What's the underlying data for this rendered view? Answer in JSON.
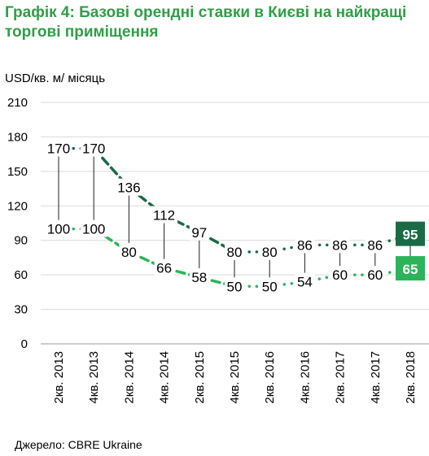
{
  "title": "Графік 4: Базові орендні ставки в Києві на найкращі торгові приміщення",
  "source": "Джерело:  CBRE Ukraine",
  "chart_data": {
    "type": "line",
    "ylabel": "USD/кв. м/ місяць",
    "ylim": [
      0,
      210
    ],
    "yticks": [
      0,
      30,
      60,
      90,
      120,
      150,
      180,
      210
    ],
    "grid": true,
    "categories": [
      "2кв. 2013",
      "4кв. 2013",
      "2кв. 2014",
      "4кв. 2014",
      "2кв. 2015",
      "4кв. 2015",
      "2кв. 2016",
      "4кв. 2016",
      "2кв. 2017",
      "4кв. 2017",
      "2кв. 2018"
    ],
    "series": [
      {
        "values": [
          170,
          170,
          136,
          112,
          97,
          80,
          80,
          86,
          86,
          86,
          95
        ],
        "color": "#1a6b45"
      },
      {
        "values": [
          100,
          100,
          80,
          66,
          58,
          50,
          50,
          54,
          60,
          60,
          65
        ],
        "color": "#2db35a"
      }
    ],
    "last_label_colors": [
      "#1a6b45",
      "#2db35a"
    ]
  }
}
